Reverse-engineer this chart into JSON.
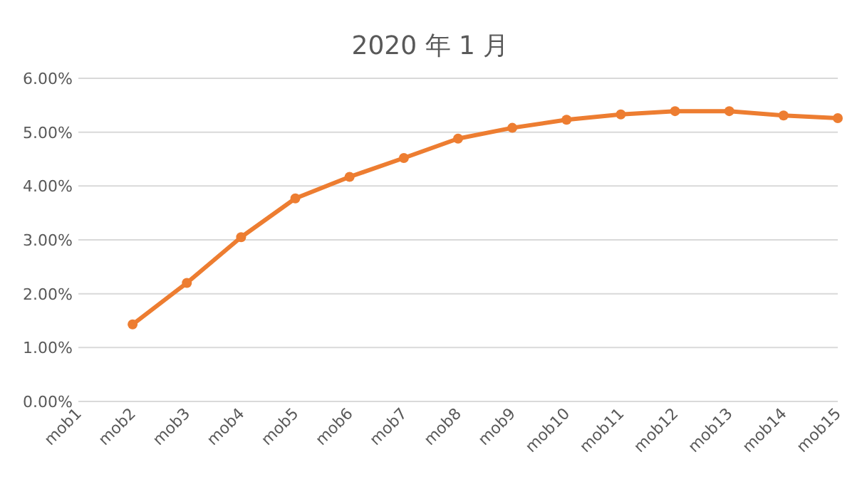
{
  "chart_data": {
    "type": "line",
    "title": "2020 年 1 月",
    "categories": [
      "mob1",
      "mob2",
      "mob3",
      "mob4",
      "mob5",
      "mob6",
      "mob7",
      "mob8",
      "mob9",
      "mob10",
      "mob11",
      "mob12",
      "mob13",
      "mob14",
      "mob15"
    ],
    "series": [
      {
        "color": "#ed7d31",
        "values": [
          null,
          1.43,
          2.2,
          3.05,
          3.77,
          4.17,
          4.52,
          4.88,
          5.08,
          5.23,
          5.33,
          5.39,
          5.39,
          5.31,
          5.26
        ]
      }
    ],
    "ylim": [
      0,
      6
    ],
    "yticks": [
      {
        "value": 0,
        "label": "0.00%"
      },
      {
        "value": 1,
        "label": "1.00%"
      },
      {
        "value": 2,
        "label": "2.00%"
      },
      {
        "value": 3,
        "label": "3.00%"
      },
      {
        "value": 4,
        "label": "4.00%"
      },
      {
        "value": 5,
        "label": "5.00%"
      },
      {
        "value": 6,
        "label": "6.00%"
      }
    ],
    "grid": "y",
    "marker": "circle",
    "line_style": "solid"
  }
}
